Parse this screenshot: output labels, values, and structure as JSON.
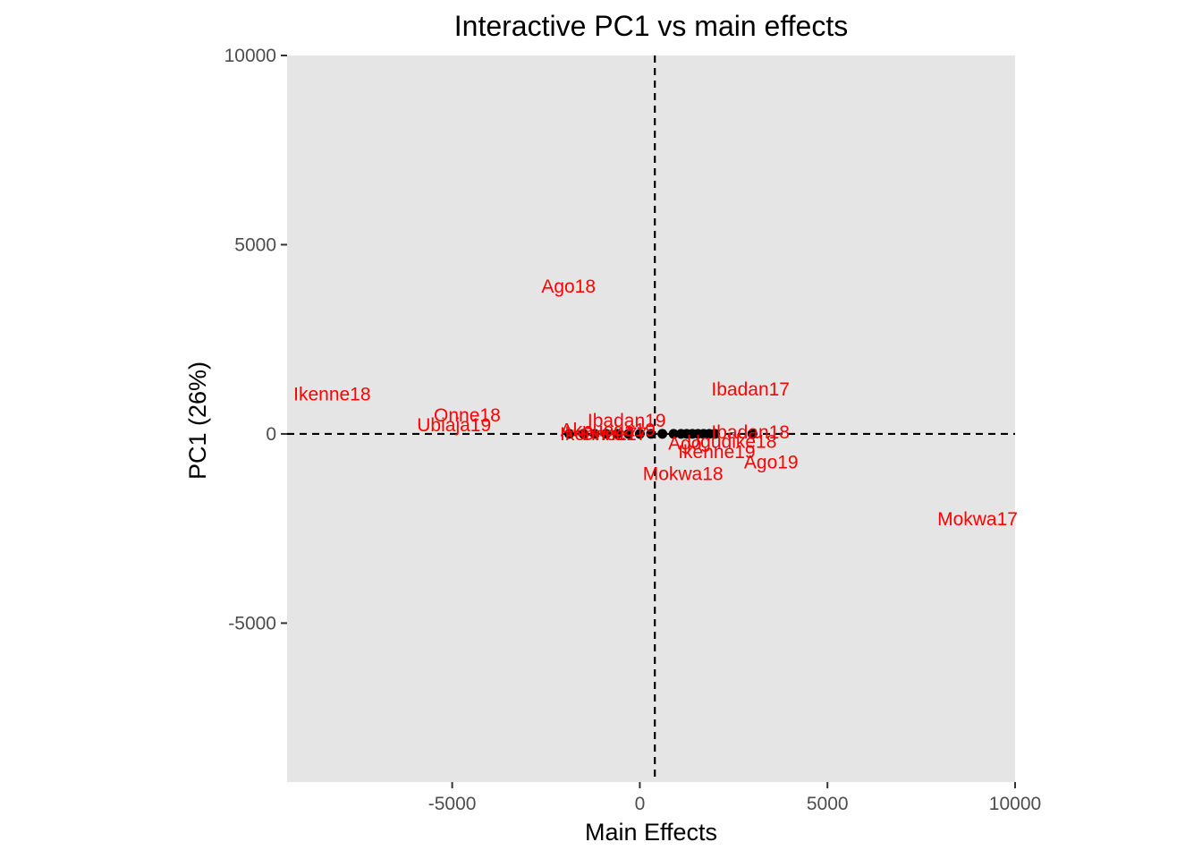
{
  "chart_data": {
    "type": "scatter",
    "title": "Interactive PC1 vs main effects",
    "xlabel": "Main Effects",
    "ylabel": "PC1 (26%)",
    "xlim": [
      -9400,
      10000
    ],
    "ylim": [
      -9200,
      10000
    ],
    "x_ticks": [
      -5000,
      0,
      5000,
      10000
    ],
    "y_ticks": [
      -5000,
      0,
      5000,
      10000
    ],
    "x_tick_labels": [
      "-5000",
      "0",
      "5000",
      "10000"
    ],
    "y_tick_labels": [
      "-5000",
      "0",
      "5000",
      "10000"
    ],
    "reference_lines": {
      "x": 400,
      "y": 0,
      "style": "dashed"
    },
    "colors": {
      "panel": "#e5e5e5",
      "environment_label": "#ff0000",
      "genotype_point": "#000000",
      "reference_line": "#000000"
    },
    "genotypes": {
      "x": [
        -1880,
        -1500,
        -1200,
        -900,
        -600,
        -300,
        0,
        300,
        600,
        900,
        1100,
        1250,
        1400,
        1550,
        1700,
        1850,
        2000,
        3000
      ],
      "y": [
        0,
        0,
        0,
        0,
        0,
        0,
        0,
        0,
        0,
        0,
        0,
        0,
        0,
        0,
        0,
        0,
        0,
        0
      ]
    },
    "environments": [
      {
        "label": "Ago18",
        "x": -1900,
        "y": 3900
      },
      {
        "label": "Ikenne18",
        "x": -8200,
        "y": 1050
      },
      {
        "label": "Onne18",
        "x": -4600,
        "y": 500
      },
      {
        "label": "Ubiaja19",
        "x": -4950,
        "y": 230
      },
      {
        "label": "Ibadan17",
        "x": 2950,
        "y": 1180
      },
      {
        "label": "Ibadan19",
        "x": -350,
        "y": 350
      },
      {
        "label": "Ibadan18",
        "x": 2950,
        "y": 50
      },
      {
        "label": "Ugudike18",
        "x": 2450,
        "y": -200
      },
      {
        "label": "Ago19",
        "x": 3500,
        "y": -750
      },
      {
        "label": "Ikenne19",
        "x": 2050,
        "y": -480
      },
      {
        "label": "Ago",
        "x": 1200,
        "y": -250
      },
      {
        "label": "Mokwa18",
        "x": 1150,
        "y": -1050
      },
      {
        "label": "Mokwa17",
        "x": 9000,
        "y": -2250
      },
      {
        "label": "Akpuoga19",
        "x": -850,
        "y": 100
      },
      {
        "label": "Ikenne17",
        "x": -1100,
        "y": 0
      },
      {
        "label": "Onne17",
        "x": -700,
        "y": 0
      }
    ]
  }
}
